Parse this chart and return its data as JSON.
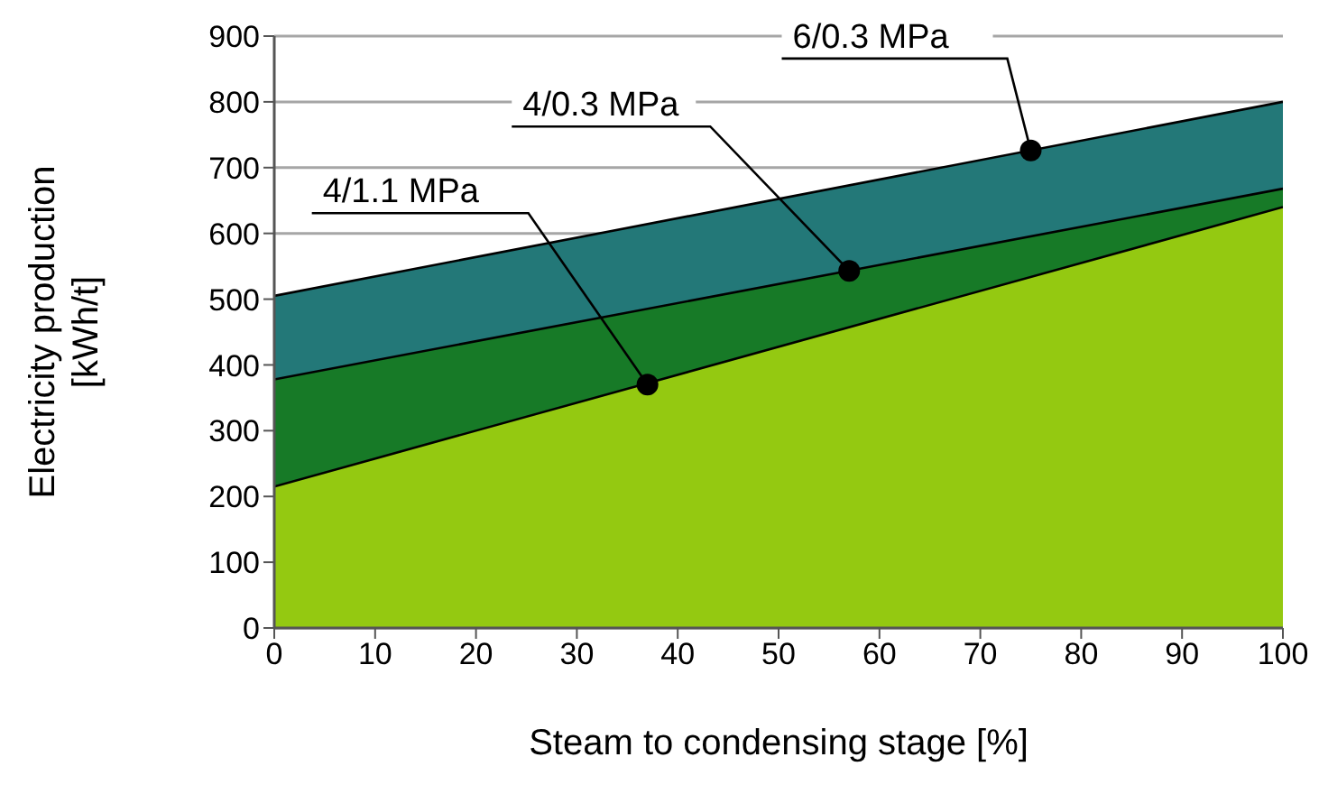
{
  "chart_data": {
    "type": "area",
    "xlabel": "Steam to condensing stage [%]",
    "ylabel": "Electricity production\n[kWh/t]",
    "x": [
      0,
      100
    ],
    "series": [
      {
        "color": "#94c911",
        "values": [
          215,
          640
        ]
      },
      {
        "color": "#177a27",
        "values": [
          378,
          668
        ]
      },
      {
        "color": "#237878",
        "values": [
          505,
          800
        ]
      }
    ],
    "xlim": [
      0,
      100
    ],
    "xticks": [
      0,
      10,
      20,
      30,
      40,
      50,
      60,
      70,
      80,
      90,
      100
    ],
    "ylim": [
      0,
      900
    ],
    "yticks": [
      0,
      100,
      200,
      300,
      400,
      500,
      600,
      700,
      800,
      900
    ],
    "grid": "y",
    "legend": false,
    "annotations": [
      {
        "text": "4/1.1 MPa",
        "x": 37,
        "y": 370
      },
      {
        "text": "4/0.3 MPa",
        "x": 57,
        "y": 543
      },
      {
        "text": "6/0.3 MPa",
        "x": 75,
        "y": 726
      }
    ]
  }
}
